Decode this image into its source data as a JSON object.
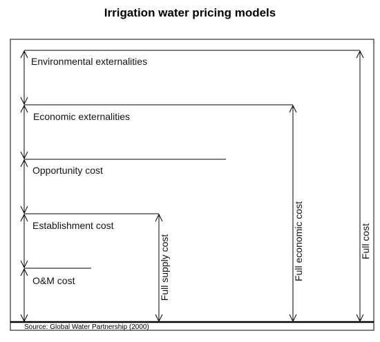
{
  "title": "Irrigation water pricing models",
  "cost_layers": [
    "Environmental externalities",
    "Economic externalities",
    "Opportunity cost",
    "Establishment cost",
    "O&M cost"
  ],
  "totals": {
    "full_supply_cost": "Full supply cost",
    "full_economic_cost": "Full economic cost",
    "full_cost": "Full cost"
  },
  "source": "Source: Global Water Partnership (2000)"
}
